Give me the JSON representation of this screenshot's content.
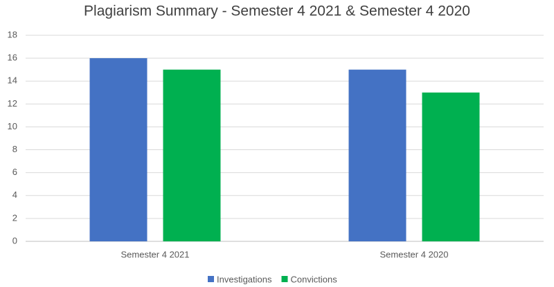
{
  "chart_data": {
    "type": "bar",
    "title": "Plagiarism Summary - Semester 4 2021 & Semester 4 2020",
    "categories": [
      "Semester 4 2021",
      "Semester 4 2020"
    ],
    "series": [
      {
        "name": "Investigations",
        "color": "#4472c4",
        "values": [
          16,
          15
        ]
      },
      {
        "name": "Convictions",
        "color": "#00b050",
        "values": [
          15,
          13
        ]
      }
    ],
    "ylim": [
      0,
      18
    ],
    "yticks": [
      0,
      2,
      4,
      6,
      8,
      10,
      12,
      14,
      16,
      18
    ],
    "grid": true,
    "legend": "bottom"
  }
}
